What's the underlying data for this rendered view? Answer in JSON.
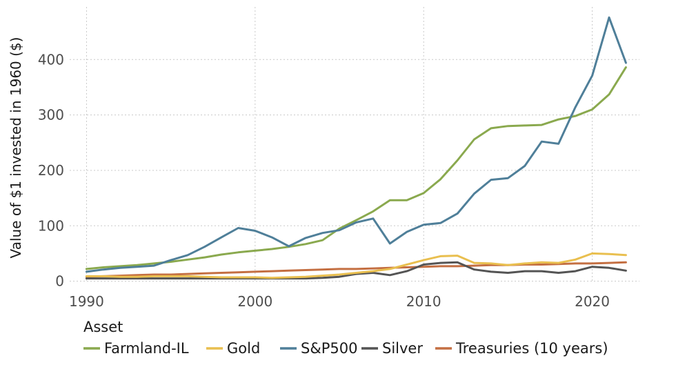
{
  "chart_data": {
    "type": "line",
    "title": "",
    "xlabel": "",
    "ylabel": "Value of $1 invested in 1960 ($)",
    "xlim": [
      1989,
      2022.8
    ],
    "ylim": [
      -3,
      495
    ],
    "x_ticks": [
      1990,
      2000,
      2010,
      2020
    ],
    "y_ticks": [
      0,
      100,
      200,
      300,
      400
    ],
    "grid": true,
    "legend": {
      "title": "Asset",
      "position": "bottom"
    },
    "x": [
      1990,
      1991,
      1992,
      1993,
      1994,
      1995,
      1996,
      1997,
      1998,
      1999,
      2000,
      2001,
      2002,
      2003,
      2004,
      2005,
      2006,
      2007,
      2008,
      2009,
      2010,
      2011,
      2012,
      2013,
      2014,
      2015,
      2016,
      2017,
      2018,
      2019,
      2020,
      2021,
      2022
    ],
    "series": [
      {
        "name": "Farmland-IL",
        "color": "#8aa94e",
        "values": [
          22,
          25,
          27,
          29,
          32,
          35,
          39,
          43,
          48,
          52,
          55,
          58,
          62,
          67,
          74,
          95,
          110,
          126,
          146,
          146,
          159,
          184,
          218,
          256,
          276,
          280,
          281,
          282,
          292,
          298,
          310,
          337,
          386
        ]
      },
      {
        "name": "Gold",
        "color": "#e9bf4f",
        "values": [
          9,
          9,
          8,
          8,
          9,
          9,
          9,
          8,
          7,
          7,
          7,
          6,
          7,
          8,
          10,
          12,
          15,
          18,
          22,
          30,
          38,
          45,
          46,
          33,
          32,
          29,
          32,
          34,
          33,
          39,
          50,
          49,
          47
        ]
      },
      {
        "name": "S&P500",
        "color": "#4f7f99",
        "values": [
          17,
          21,
          24,
          26,
          28,
          38,
          47,
          62,
          79,
          96,
          91,
          79,
          63,
          78,
          87,
          92,
          106,
          113,
          68,
          89,
          102,
          105,
          122,
          158,
          183,
          186,
          208,
          252,
          248,
          314,
          371,
          476,
          394
        ]
      },
      {
        "name": "Silver",
        "color": "#545454",
        "values": [
          5,
          5,
          5,
          5,
          5,
          5,
          5,
          5,
          5,
          5,
          5,
          5,
          5,
          5,
          6,
          8,
          13,
          15,
          11,
          18,
          30,
          33,
          34,
          21,
          17,
          15,
          18,
          18,
          15,
          18,
          26,
          24,
          19
        ]
      },
      {
        "name": "Treasuries (10 years)",
        "color": "#c46f42",
        "values": [
          8,
          9,
          10,
          11,
          12,
          12,
          13,
          14,
          15,
          16,
          17,
          18,
          19,
          20,
          21,
          22,
          22,
          23,
          24,
          25,
          26,
          27,
          27,
          28,
          29,
          29,
          30,
          30,
          31,
          32,
          32,
          33,
          34
        ]
      }
    ]
  }
}
